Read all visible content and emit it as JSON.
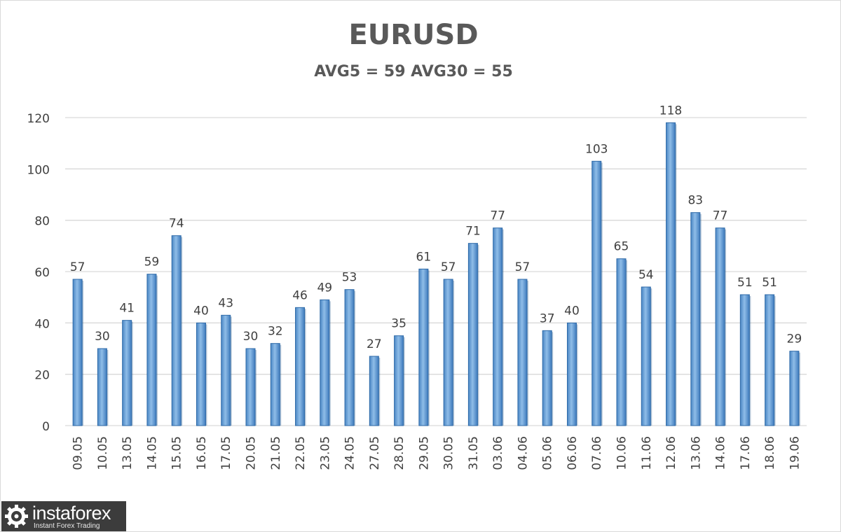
{
  "chart_data": {
    "type": "bar",
    "title": "EURUSD",
    "subtitle": "AVG5 = 59 AVG30 = 55",
    "categories": [
      "09.05",
      "10.05",
      "13.05",
      "14.05",
      "15.05",
      "16.05",
      "17.05",
      "20.05",
      "21.05",
      "22.05",
      "23.05",
      "24.05",
      "27.05",
      "28.05",
      "29.05",
      "30.05",
      "31.05",
      "03.06",
      "04.06",
      "05.06",
      "06.06",
      "07.06",
      "10.06",
      "11.06",
      "12.06",
      "13.06",
      "14.06",
      "17.06",
      "18.06",
      "19.06"
    ],
    "values": [
      57,
      30,
      41,
      59,
      74,
      40,
      43,
      30,
      32,
      46,
      49,
      53,
      27,
      35,
      61,
      57,
      71,
      77,
      57,
      37,
      40,
      103,
      65,
      54,
      118,
      83,
      77,
      51,
      51,
      29
    ],
    "yticks": [
      0,
      20,
      40,
      60,
      80,
      100,
      120
    ],
    "ylim": [
      0,
      120
    ],
    "grid": true,
    "data_labels": true,
    "bar_color": "#5b9bd5"
  },
  "watermark": {
    "name": "instaforex",
    "tagline": "Instant Forex Trading"
  }
}
